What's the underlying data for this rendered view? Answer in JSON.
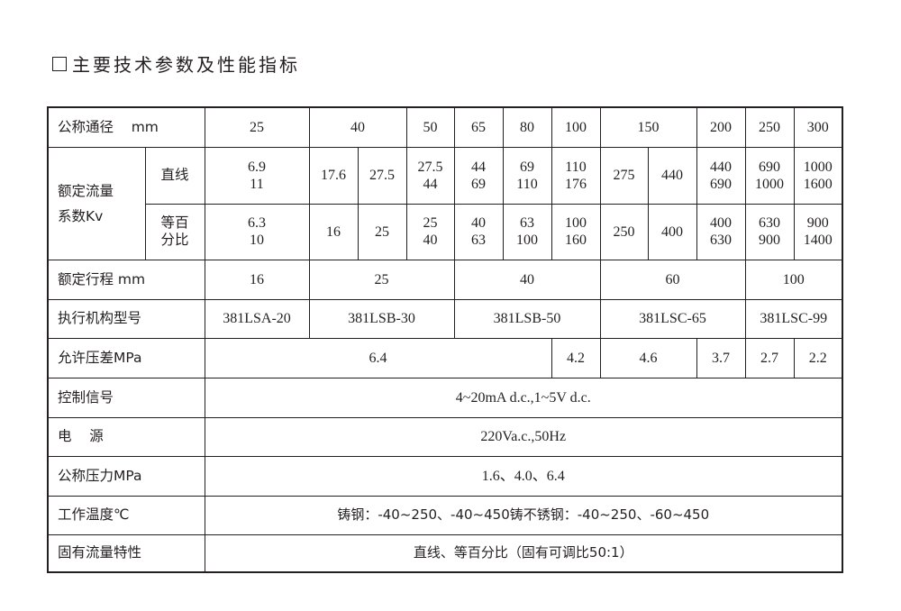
{
  "title": "主要技术参数及性能指标",
  "header": {
    "label": "公称通径    mm",
    "sizes": [
      "25",
      "40",
      "50",
      "65",
      "80",
      "100",
      "150",
      "200",
      "250",
      "300"
    ]
  },
  "flow": {
    "label": "额定流量\n系数Kv",
    "linear": {
      "label": "直线",
      "values": [
        "6.9\n11",
        "17.6",
        "27.5",
        "27.5\n44",
        "44\n69",
        "69\n110",
        "110\n176",
        "275",
        "440",
        "440\n690",
        "690\n1000",
        "1000\n1600"
      ]
    },
    "equal": {
      "label": "等百\n分比",
      "values": [
        "6.3\n10",
        "16",
        "25",
        "25\n40",
        "40\n63",
        "63\n100",
        "100\n160",
        "250",
        "400",
        "400\n630",
        "630\n900",
        "900\n1400"
      ]
    }
  },
  "stroke": {
    "label": "额定行程 mm",
    "values": [
      "16",
      "25",
      "40",
      "60",
      "100"
    ]
  },
  "actuator": {
    "label": "执行机构型号",
    "values": [
      "381LSA-20",
      "381LSB-30",
      "381LSB-50",
      "381LSC-65",
      "381LSC-99"
    ]
  },
  "pressure_diff": {
    "label": "允许压差MPa",
    "values": [
      "6.4",
      "4.2",
      "4.6",
      "3.7",
      "2.7",
      "2.2"
    ]
  },
  "signal": {
    "label": "控制信号",
    "value": "4~20mA d.c.,1~5V d.c."
  },
  "power": {
    "label": "电    源",
    "value": "220Va.c.,50Hz"
  },
  "nominal_pressure": {
    "label": "公称压力MPa",
    "value": "1.6、4.0、6.4"
  },
  "temperature": {
    "label": "工作温度℃",
    "value": "铸钢：-40~250、-40~450铸不锈钢：-40~250、-60~450"
  },
  "characteristic": {
    "label": "固有流量特性",
    "value": "直线、等百分比（固有可调比50:1）"
  }
}
